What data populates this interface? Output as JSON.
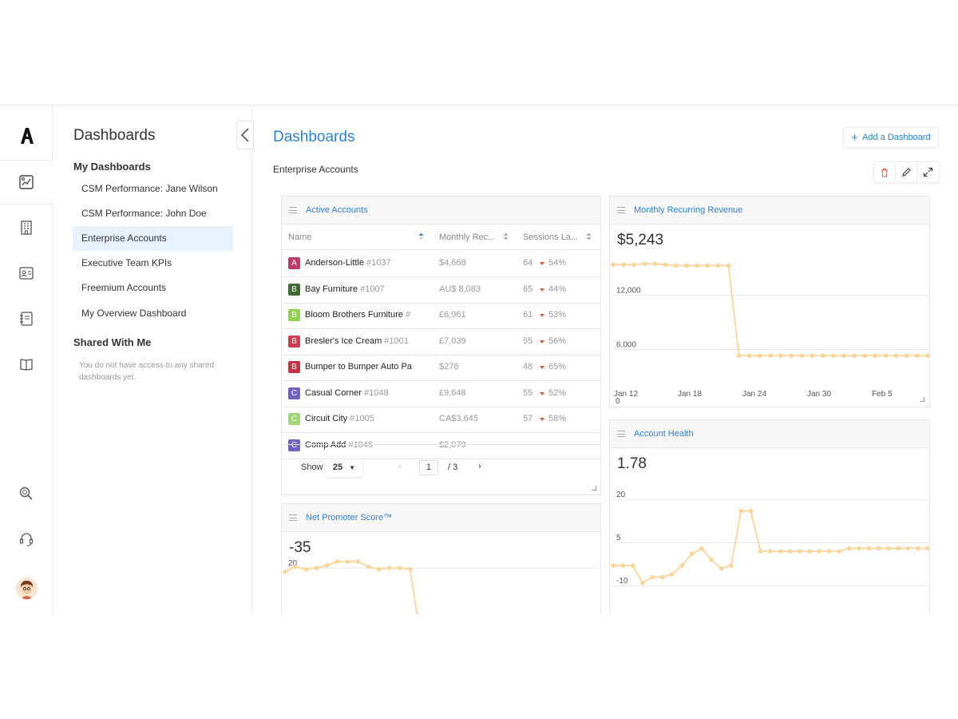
{
  "nav": {
    "title": "Dashboards",
    "my_dashboards_label": "My Dashboards",
    "items": [
      "CSM Performance: Jane Wilson",
      "CSM Performance: John Doe",
      "Enterprise Accounts",
      "Executive Team KPIs",
      "Freemium Accounts",
      "My Overview Dashboard"
    ],
    "active_item": "Enterprise Accounts",
    "shared_label": "Shared With Me",
    "shared_empty": "You do not have access to any shared dashboards yet."
  },
  "rail": {
    "icons": [
      "logo-icon",
      "dashboard-icon",
      "building-icon",
      "contact-card-icon",
      "notebook-icon",
      "book-icon",
      "search-icon",
      "headset-icon",
      "avatar"
    ]
  },
  "main": {
    "title": "Dashboards",
    "add_button": "Add a Dashboard",
    "subtitle": "Enterprise Accounts"
  },
  "active_accounts": {
    "title": "Active Accounts",
    "columns": [
      "Name",
      "Monthly Rec...",
      "Sessions La..."
    ],
    "rows": [
      {
        "badge": "A",
        "color": "#c0396b",
        "name": "Anderson-Little",
        "id": "#1037",
        "revenue": "$4,668",
        "sessions": "64",
        "pct": "54%"
      },
      {
        "badge": "B",
        "color": "#3f6b35",
        "name": "Bay Furniture",
        "id": "#1007",
        "revenue": "AU$ 8,083",
        "sessions": "65",
        "pct": "44%"
      },
      {
        "badge": "B",
        "color": "#8fd44c",
        "name": "Bloom Brothers Furniture",
        "id": "#",
        "revenue": "£6,961",
        "sessions": "61",
        "pct": "53%"
      },
      {
        "badge": "B",
        "color": "#d6394a",
        "name": "Bresler's Ice Cream",
        "id": "#1001",
        "revenue": "£7,039",
        "sessions": "55",
        "pct": "56%"
      },
      {
        "badge": "B",
        "color": "#c8313d",
        "name": "Bumper to Bumper Auto Pa",
        "id": "",
        "revenue": "$276",
        "sessions": "48",
        "pct": "65%"
      },
      {
        "badge": "C",
        "color": "#6e62c4",
        "name": "Casual Corner",
        "id": "#1048",
        "revenue": "£9,648",
        "sessions": "55",
        "pct": "52%"
      },
      {
        "badge": "C",
        "color": "#9fd873",
        "name": "Circuit City",
        "id": "#1005",
        "revenue": "CA$3,645",
        "sessions": "57",
        "pct": "58%"
      },
      {
        "badge": "C",
        "color": "#6e62c4",
        "name": "Comp Add",
        "id": "#1046",
        "revenue": "$2,079",
        "sessions": "",
        "pct": ""
      }
    ],
    "show_label": "Show",
    "page_size": "25",
    "page": "1",
    "page_sep": "/ 3"
  },
  "mrr": {
    "title": "Monthly Recurring Revenue",
    "value": "$5,243",
    "y_ticks": [
      "12,000",
      "6,000",
      "0"
    ],
    "x_ticks": [
      "Jan 12",
      "Jan 18",
      "Jan 24",
      "Jan 30",
      "Feb 5"
    ]
  },
  "health": {
    "title": "Account Health",
    "value": "1.78",
    "y_ticks": [
      "20",
      "5",
      "-10"
    ]
  },
  "nps": {
    "title": "Net Promoter Score™",
    "value": "-35",
    "y_ticks": [
      "20"
    ]
  },
  "chart_data": [
    {
      "type": "line",
      "title": "Monthly Recurring Revenue",
      "x": [
        "Jan 11",
        "Jan 12",
        "Jan 13",
        "Jan 14",
        "Jan 15",
        "Jan 16",
        "Jan 17",
        "Jan 18",
        "Jan 19",
        "Jan 20",
        "Jan 21",
        "Jan 22",
        "Jan 23",
        "Jan 24",
        "Jan 25",
        "Jan 26",
        "Jan 27",
        "Jan 28",
        "Jan 29",
        "Jan 30",
        "Jan 31",
        "Feb 1",
        "Feb 2",
        "Feb 3",
        "Feb 4",
        "Feb 5",
        "Feb 6",
        "Feb 7",
        "Feb 8",
        "Feb 9",
        "Feb 10"
      ],
      "values": [
        15400,
        15400,
        15400,
        15500,
        15500,
        15400,
        15300,
        15300,
        15300,
        15300,
        15300,
        15300,
        5300,
        5300,
        5300,
        5300,
        5300,
        5300,
        5300,
        5300,
        5300,
        5300,
        5300,
        5300,
        5300,
        5300,
        5300,
        5300,
        5300,
        5300,
        5300
      ],
      "ylim": [
        0,
        18000
      ],
      "color": "#f9d597"
    },
    {
      "type": "line",
      "title": "Account Health",
      "values": [
        -3,
        -3,
        -3,
        -9,
        -7,
        -7,
        -6,
        -3,
        1,
        3,
        -1,
        -4,
        -3,
        16,
        16,
        2,
        2,
        2,
        2,
        2,
        2,
        2,
        2,
        2,
        3,
        3,
        3,
        3,
        3,
        3,
        3,
        3,
        3
      ],
      "ylim": [
        -18,
        32
      ],
      "color": "#f9d597"
    },
    {
      "type": "line",
      "title": "Net Promoter Score™",
      "values": [
        17,
        21,
        19,
        20,
        22,
        25,
        25,
        25,
        21,
        19,
        20,
        20,
        19,
        -35
      ],
      "ylim": [
        -40,
        35
      ],
      "color": "#f9d597"
    }
  ]
}
